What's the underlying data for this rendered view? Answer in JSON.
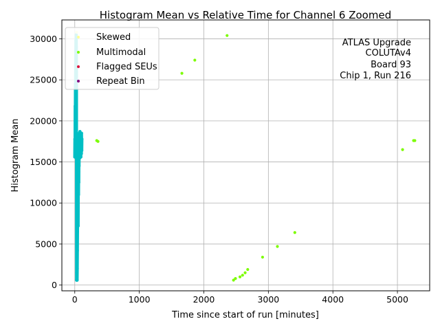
{
  "chart_data": {
    "type": "scatter",
    "title": "Histogram Mean vs Relative Time for Channel 6 Zoomed",
    "xlabel": "Time since start of run [minutes]",
    "ylabel": "Histogram Mean",
    "xlim": [
      -200,
      5500
    ],
    "ylim": [
      -700,
      32300
    ],
    "xticks": [
      0,
      1000,
      2000,
      3000,
      4000,
      5000
    ],
    "yticks": [
      0,
      5000,
      10000,
      15000,
      20000,
      25000,
      30000
    ],
    "grid": true,
    "legend_position": "top-left",
    "annotation": [
      "ATLAS Upgrade",
      "COLUTAv4",
      "Board 93",
      "Chip 1, Run 216"
    ],
    "legend": [
      {
        "name": "Skewed",
        "color": "#ffff99"
      },
      {
        "name": "Multimodal",
        "color": "#7cfc00"
      },
      {
        "name": "Flagged SEUs",
        "color": "#dc143c"
      },
      {
        "name": "Repeat Bin",
        "color": "#800080"
      }
    ],
    "series": [
      {
        "name": "",
        "color": "#00bfc4",
        "x": [
          0,
          2,
          4,
          6,
          8,
          10,
          12,
          14,
          16,
          18,
          20,
          22,
          24,
          26,
          28,
          30,
          32,
          34,
          36,
          38,
          40,
          42,
          44,
          46,
          48,
          50,
          52,
          54,
          56,
          58,
          60,
          62,
          64,
          66,
          68,
          70,
          72,
          74,
          76,
          78,
          80,
          82,
          84,
          86,
          88,
          90,
          92,
          94,
          96,
          98,
          100,
          102,
          104,
          106,
          108,
          110
        ],
        "y": [
          15600,
          17800,
          16200,
          21800,
          18500,
          24500,
          22800,
          26800,
          27500,
          29800,
          28500,
          30500,
          29000,
          26000,
          600,
          1500,
          3500,
          5000,
          600,
          2000,
          4200,
          6500,
          7500,
          8800,
          9500,
          10500,
          7200,
          11500,
          12800,
          11000,
          13800,
          12500,
          15500,
          14500,
          16200,
          17000,
          18500,
          17800,
          16500,
          15500,
          18700,
          17200,
          15800,
          16500,
          18200,
          17500,
          16800,
          15600,
          18300,
          17600,
          17000,
          16000,
          18500,
          17200,
          16400,
          17800
        ]
      },
      {
        "name": "Multimodal",
        "color": "#7cfc00",
        "x": [
          340,
          360,
          1660,
          1860,
          2360,
          2460,
          2490,
          2560,
          2600,
          2640,
          2680,
          2910,
          3140,
          3410,
          5080,
          5250,
          5270
        ],
        "y": [
          17600,
          17500,
          25800,
          27400,
          30400,
          600,
          800,
          1000,
          1200,
          1500,
          1900,
          3400,
          4700,
          6400,
          16500,
          17600,
          17600
        ]
      },
      {
        "name": "Skewed",
        "color": "#ffff99",
        "x": [
          30
        ],
        "y": [
          30800
        ]
      }
    ]
  }
}
